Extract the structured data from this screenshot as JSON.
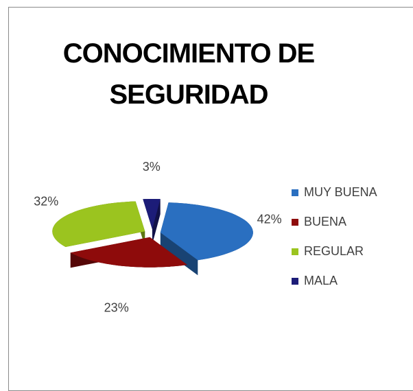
{
  "chart_data": {
    "type": "pie",
    "title": "CONOCIMIENTO DE SEGURIDAD",
    "categories": [
      "MUY BUENA",
      "BUENA",
      "REGULAR",
      "MALA"
    ],
    "values": [
      42,
      23,
      32,
      3
    ],
    "value_labels": [
      "42%",
      "23%",
      "32%",
      "3%"
    ],
    "colors": [
      "#2a6fc0",
      "#8e0b0b",
      "#9bc41f",
      "#1c1c78"
    ],
    "legend": "right"
  }
}
